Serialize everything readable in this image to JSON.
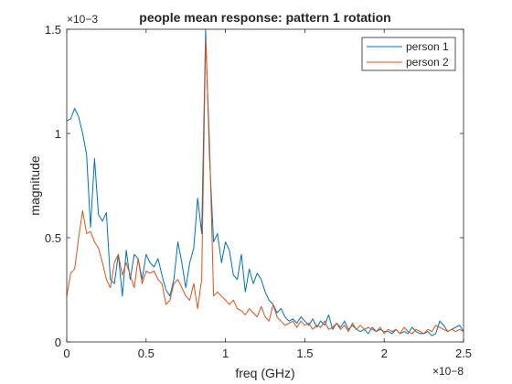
{
  "chart_data": {
    "type": "line",
    "title": "people mean response: pattern 1 rotation",
    "xlabel": "freq (GHz)",
    "ylabel": "magnitude",
    "x_exponent_label": "×10−8",
    "y_exponent_label": "×10−3",
    "xlim": [
      0,
      2.5
    ],
    "ylim": [
      0,
      1.5
    ],
    "xticks": [
      0,
      0.5,
      1,
      1.5,
      2,
      2.5
    ],
    "xtick_labels": [
      "0",
      "0.5",
      "1",
      "1.5",
      "2",
      "2.5"
    ],
    "yticks": [
      0,
      0.5,
      1,
      1.5
    ],
    "ytick_labels": [
      "0",
      "0.5",
      "1",
      "1.5"
    ],
    "grid": false,
    "legend_position": "top-right",
    "colors": [
      "#0072BD",
      "#D95319"
    ],
    "series": [
      {
        "name": "person 1",
        "x": [
          0,
          0.025,
          0.05,
          0.075,
          0.1,
          0.125,
          0.15,
          0.175,
          0.2,
          0.225,
          0.25,
          0.275,
          0.3,
          0.325,
          0.35,
          0.375,
          0.4,
          0.425,
          0.45,
          0.475,
          0.5,
          0.525,
          0.55,
          0.575,
          0.6,
          0.625,
          0.65,
          0.675,
          0.7,
          0.725,
          0.75,
          0.775,
          0.8,
          0.825,
          0.85,
          0.875,
          0.9,
          0.925,
          0.95,
          0.975,
          1,
          1.025,
          1.05,
          1.075,
          1.1,
          1.125,
          1.15,
          1.175,
          1.2,
          1.225,
          1.25,
          1.275,
          1.3,
          1.325,
          1.35,
          1.375,
          1.4,
          1.425,
          1.45,
          1.475,
          1.5,
          1.525,
          1.55,
          1.575,
          1.6,
          1.625,
          1.65,
          1.675,
          1.7,
          1.725,
          1.75,
          1.775,
          1.8,
          1.825,
          1.85,
          1.875,
          1.9,
          1.925,
          1.95,
          1.975,
          2,
          2.025,
          2.05,
          2.075,
          2.1,
          2.125,
          2.15,
          2.175,
          2.2,
          2.225,
          2.25,
          2.275,
          2.3,
          2.325,
          2.35,
          2.375,
          2.4,
          2.425,
          2.45,
          2.475,
          2.5
        ],
        "values": [
          1.06,
          1.07,
          1.12,
          1.08,
          1.0,
          0.9,
          0.55,
          0.88,
          0.61,
          0.58,
          0.62,
          0.3,
          0.28,
          0.42,
          0.22,
          0.44,
          0.3,
          0.42,
          0.4,
          0.3,
          0.42,
          0.38,
          0.36,
          0.4,
          0.32,
          0.25,
          0.22,
          0.3,
          0.48,
          0.38,
          0.26,
          0.38,
          0.45,
          0.69,
          0.52,
          1.5,
          0.88,
          0.48,
          0.52,
          0.38,
          0.48,
          0.44,
          0.32,
          0.3,
          0.42,
          0.24,
          0.35,
          0.28,
          0.33,
          0.3,
          0.24,
          0.2,
          0.18,
          0.14,
          0.16,
          0.12,
          0.1,
          0.11,
          0.09,
          0.12,
          0.1,
          0.08,
          0.11,
          0.07,
          0.1,
          0.08,
          0.13,
          0.06,
          0.09,
          0.07,
          0.1,
          0.06,
          0.08,
          0.06,
          0.05,
          0.06,
          0.04,
          0.07,
          0.05,
          0.06,
          0.05,
          0.05,
          0.04,
          0.06,
          0.04,
          0.05,
          0.04,
          0.07,
          0.05,
          0.04,
          0.04,
          0.05,
          0.03,
          0.04,
          0.1,
          0.08,
          0.05,
          0.06,
          0.07,
          0.08,
          0.05
        ]
      },
      {
        "name": "person 2",
        "x": [
          0,
          0.025,
          0.05,
          0.075,
          0.1,
          0.125,
          0.15,
          0.175,
          0.2,
          0.225,
          0.25,
          0.275,
          0.3,
          0.325,
          0.35,
          0.375,
          0.4,
          0.425,
          0.45,
          0.475,
          0.5,
          0.525,
          0.55,
          0.575,
          0.6,
          0.625,
          0.65,
          0.675,
          0.7,
          0.725,
          0.75,
          0.775,
          0.8,
          0.825,
          0.85,
          0.875,
          0.9,
          0.925,
          0.95,
          0.975,
          1,
          1.025,
          1.05,
          1.075,
          1.1,
          1.125,
          1.15,
          1.175,
          1.2,
          1.225,
          1.25,
          1.275,
          1.3,
          1.325,
          1.35,
          1.375,
          1.4,
          1.425,
          1.45,
          1.475,
          1.5,
          1.525,
          1.55,
          1.575,
          1.6,
          1.625,
          1.65,
          1.675,
          1.7,
          1.725,
          1.75,
          1.775,
          1.8,
          1.825,
          1.85,
          1.875,
          1.9,
          1.925,
          1.95,
          1.975,
          2,
          2.025,
          2.05,
          2.075,
          2.1,
          2.125,
          2.15,
          2.175,
          2.2,
          2.225,
          2.25,
          2.275,
          2.3,
          2.325,
          2.35,
          2.375,
          2.4,
          2.425,
          2.45,
          2.475,
          2.5
        ],
        "values": [
          0.22,
          0.33,
          0.35,
          0.5,
          0.63,
          0.52,
          0.53,
          0.48,
          0.45,
          0.38,
          0.3,
          0.26,
          0.38,
          0.42,
          0.32,
          0.38,
          0.32,
          0.26,
          0.4,
          0.28,
          0.34,
          0.33,
          0.34,
          0.3,
          0.28,
          0.18,
          0.2,
          0.28,
          0.3,
          0.26,
          0.22,
          0.2,
          0.28,
          0.16,
          0.3,
          1.45,
          0.95,
          0.22,
          0.24,
          0.22,
          0.2,
          0.18,
          0.2,
          0.16,
          0.15,
          0.13,
          0.16,
          0.14,
          0.12,
          0.17,
          0.12,
          0.1,
          0.18,
          0.12,
          0.1,
          0.08,
          0.09,
          0.1,
          0.07,
          0.1,
          0.08,
          0.09,
          0.06,
          0.08,
          0.07,
          0.1,
          0.06,
          0.07,
          0.09,
          0.06,
          0.08,
          0.05,
          0.09,
          0.06,
          0.08,
          0.06,
          0.07,
          0.06,
          0.05,
          0.07,
          0.04,
          0.06,
          0.05,
          0.06,
          0.04,
          0.07,
          0.05,
          0.04,
          0.06,
          0.05,
          0.04,
          0.06,
          0.05,
          0.08,
          0.07,
          0.06,
          0.05,
          0.06,
          0.05,
          0.06,
          0.05
        ]
      }
    ]
  }
}
